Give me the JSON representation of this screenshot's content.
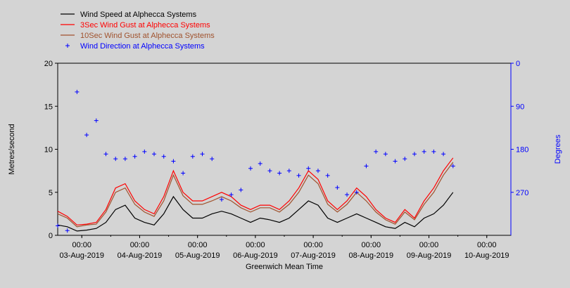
{
  "chart_data": {
    "type": "line",
    "title": "",
    "xlabel": "Greenwich Mean Time",
    "ylabel": "Metres/second",
    "y2label": "Degrees",
    "ylim": [
      0,
      20
    ],
    "y2lim": [
      0,
      360
    ],
    "y2_inverted": true,
    "yticks": [
      0,
      5,
      10,
      15,
      20
    ],
    "y2ticks": [
      0,
      90,
      180,
      270
    ],
    "xlim": [
      "2019-08-02 14:00",
      "2019-08-10 10:00"
    ],
    "xticks": [
      {
        "time": "00:00",
        "date": "03-Aug-2019"
      },
      {
        "time": "00:00",
        "date": "04-Aug-2019"
      },
      {
        "time": "00:00",
        "date": "05-Aug-2019"
      },
      {
        "time": "00:00",
        "date": "06-Aug-2019"
      },
      {
        "time": "00:00",
        "date": "07-Aug-2019"
      },
      {
        "time": "00:00",
        "date": "08-Aug-2019"
      },
      {
        "time": "00:00",
        "date": "09-Aug-2019"
      },
      {
        "time": "00:00",
        "date": "10-Aug-2019"
      }
    ],
    "grid": false,
    "legend_position": "top-left",
    "x_times": [
      "2019-08-02 14:00",
      "2019-08-02 18:00",
      "2019-08-02 22:00",
      "2019-08-03 02:00",
      "2019-08-03 06:00",
      "2019-08-03 10:00",
      "2019-08-03 14:00",
      "2019-08-03 18:00",
      "2019-08-03 22:00",
      "2019-08-04 02:00",
      "2019-08-04 06:00",
      "2019-08-04 10:00",
      "2019-08-04 14:00",
      "2019-08-04 18:00",
      "2019-08-04 22:00",
      "2019-08-05 02:00",
      "2019-08-05 06:00",
      "2019-08-05 10:00",
      "2019-08-05 14:00",
      "2019-08-05 18:00",
      "2019-08-05 22:00",
      "2019-08-06 02:00",
      "2019-08-06 06:00",
      "2019-08-06 10:00",
      "2019-08-06 14:00",
      "2019-08-06 18:00",
      "2019-08-06 22:00",
      "2019-08-07 02:00",
      "2019-08-07 06:00",
      "2019-08-07 10:00",
      "2019-08-07 14:00",
      "2019-08-07 18:00",
      "2019-08-07 22:00",
      "2019-08-08 02:00",
      "2019-08-08 06:00",
      "2019-08-08 10:00",
      "2019-08-08 14:00",
      "2019-08-08 18:00",
      "2019-08-08 22:00",
      "2019-08-09 02:00",
      "2019-08-09 06:00",
      "2019-08-09 10:00"
    ],
    "series": [
      {
        "name": "Wind Speed at Alphecca Systems",
        "color": "#000000",
        "marker": "line",
        "axis": "left",
        "values": [
          1.2,
          1.0,
          0.5,
          0.6,
          0.8,
          1.5,
          3.0,
          3.5,
          2.0,
          1.5,
          1.2,
          2.5,
          4.5,
          3.0,
          2.0,
          2.0,
          2.5,
          2.8,
          2.5,
          2.0,
          1.5,
          2.0,
          1.8,
          1.5,
          2.0,
          3.0,
          4.0,
          3.5,
          2.0,
          1.5,
          2.0,
          2.5,
          2.0,
          1.5,
          1.0,
          0.8,
          1.5,
          1.0,
          2.0,
          2.5,
          3.5,
          5.0
        ]
      },
      {
        "name": "3Sec Wind Gust at Alphecca Systems",
        "color": "#ff0000",
        "marker": "line",
        "axis": "left",
        "values": [
          2.8,
          2.2,
          1.2,
          1.3,
          1.5,
          3.0,
          5.5,
          6.0,
          4.0,
          3.0,
          2.5,
          4.5,
          7.5,
          5.0,
          4.0,
          4.0,
          4.5,
          5.0,
          4.5,
          3.5,
          3.0,
          3.5,
          3.5,
          3.0,
          4.0,
          5.5,
          7.5,
          6.5,
          4.0,
          3.0,
          4.0,
          5.5,
          4.5,
          3.0,
          2.0,
          1.5,
          3.0,
          2.0,
          4.0,
          5.5,
          7.5,
          9.0
        ]
      },
      {
        "name": "10Sec Wind Gust at Alphecca Systems",
        "color": "#a0522d",
        "marker": "line",
        "axis": "left",
        "values": [
          2.5,
          2.0,
          1.0,
          1.2,
          1.3,
          2.7,
          5.0,
          5.5,
          3.6,
          2.7,
          2.2,
          4.0,
          7.0,
          4.6,
          3.6,
          3.6,
          4.0,
          4.5,
          4.0,
          3.2,
          2.7,
          3.2,
          3.2,
          2.7,
          3.6,
          5.0,
          7.0,
          6.0,
          3.6,
          2.7,
          3.6,
          5.0,
          4.0,
          2.7,
          1.8,
          1.3,
          2.7,
          1.8,
          3.6,
          5.0,
          7.0,
          8.5
        ]
      },
      {
        "name": "Wind Direction at Alphecca Systems",
        "color": "#0000ff",
        "marker": "+",
        "axis": "right",
        "values": [
          340,
          350,
          60,
          150,
          120,
          190,
          200,
          200,
          195,
          185,
          190,
          195,
          205,
          230,
          195,
          190,
          200,
          285,
          275,
          265,
          220,
          210,
          225,
          230,
          225,
          235,
          220,
          225,
          235,
          260,
          275,
          270,
          215,
          185,
          190,
          205,
          200,
          190,
          185,
          185,
          190,
          215
        ]
      }
    ]
  }
}
